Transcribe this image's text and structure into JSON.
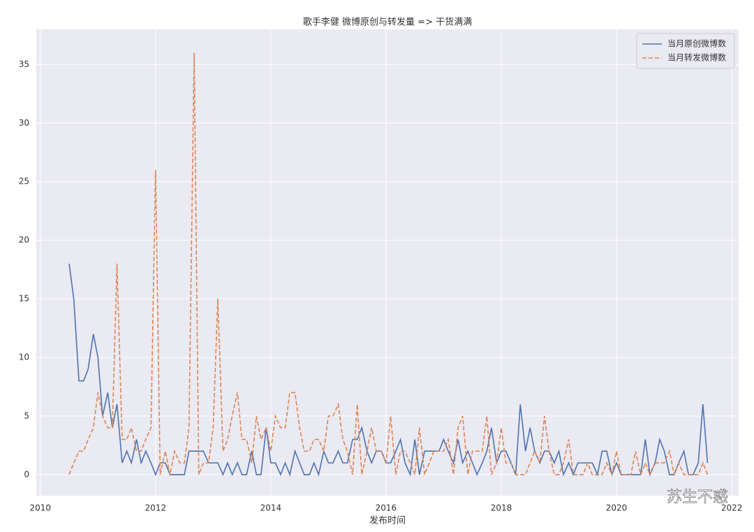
{
  "chart_data": {
    "type": "line",
    "title": "歌手李健 微博原创与转发量 => 干货满满",
    "xlabel": "发布时间",
    "watermark": "苏生不惑",
    "x": [
      2010.5,
      2010.58,
      2010.67,
      2010.75,
      2010.83,
      2010.92,
      2011,
      2011.08,
      2011.17,
      2011.25,
      2011.33,
      2011.42,
      2011.5,
      2011.58,
      2011.67,
      2011.75,
      2011.83,
      2011.92,
      2012,
      2012.08,
      2012.17,
      2012.25,
      2012.33,
      2012.42,
      2012.5,
      2012.58,
      2012.67,
      2012.75,
      2012.83,
      2012.92,
      2013,
      2013.08,
      2013.17,
      2013.25,
      2013.33,
      2013.42,
      2013.5,
      2013.58,
      2013.67,
      2013.75,
      2013.83,
      2013.92,
      2014,
      2014.08,
      2014.17,
      2014.25,
      2014.33,
      2014.42,
      2014.5,
      2014.58,
      2014.67,
      2014.75,
      2014.83,
      2014.92,
      2015,
      2015.08,
      2015.17,
      2015.25,
      2015.33,
      2015.42,
      2015.5,
      2015.58,
      2015.67,
      2015.75,
      2015.83,
      2015.92,
      2016,
      2016.08,
      2016.17,
      2016.25,
      2016.33,
      2016.42,
      2016.5,
      2016.58,
      2016.67,
      2016.75,
      2016.83,
      2016.92,
      2017,
      2017.08,
      2017.17,
      2017.25,
      2017.33,
      2017.42,
      2017.5,
      2017.58,
      2017.67,
      2017.75,
      2017.83,
      2017.92,
      2018,
      2018.08,
      2018.17,
      2018.25,
      2018.33,
      2018.42,
      2018.5,
      2018.58,
      2018.67,
      2018.75,
      2018.83,
      2018.92,
      2019,
      2019.08,
      2019.17,
      2019.25,
      2019.33,
      2019.42,
      2019.5,
      2019.58,
      2019.67,
      2019.75,
      2019.83,
      2019.92,
      2020,
      2020.08,
      2020.17,
      2020.25,
      2020.33,
      2020.42,
      2020.5,
      2020.58,
      2020.67,
      2020.75,
      2020.83,
      2020.92,
      2021,
      2021.08,
      2021.17,
      2021.25,
      2021.33,
      2021.42,
      2021.5,
      2021.58
    ],
    "series": [
      {
        "name": "当月原创微博数",
        "color": "#4c72b0",
        "dash": false,
        "values": [
          18,
          15,
          8,
          8,
          9,
          12,
          10,
          5,
          7,
          4,
          6,
          1,
          2,
          1,
          3,
          1,
          2,
          1,
          0,
          1,
          1,
          0,
          0,
          0,
          0,
          2,
          2,
          2,
          2,
          1,
          1,
          1,
          0,
          1,
          0,
          1,
          0,
          0,
          2,
          0,
          0,
          4,
          1,
          1,
          0,
          1,
          0,
          2,
          1,
          0,
          0,
          1,
          0,
          2,
          1,
          1,
          2,
          1,
          1,
          3,
          3,
          4,
          2,
          1,
          2,
          2,
          1,
          1,
          2,
          3,
          1,
          0,
          3,
          0,
          2,
          2,
          2,
          2,
          3,
          2,
          1,
          3,
          1,
          2,
          1,
          0,
          1,
          2,
          4,
          1,
          2,
          2,
          1,
          0,
          6,
          2,
          4,
          2,
          1,
          2,
          2,
          1,
          2,
          0,
          1,
          0,
          1,
          1,
          1,
          1,
          0,
          2,
          2,
          0,
          1,
          0,
          0,
          0,
          0,
          0,
          3,
          0,
          1,
          3,
          2,
          0,
          0,
          1,
          2,
          0,
          0,
          1,
          6,
          1
        ]
      },
      {
        "name": "当月转发微博数",
        "color": "#dd8452",
        "dash": true,
        "values": [
          0,
          1,
          2,
          2,
          3,
          4,
          7,
          5,
          4,
          4,
          18,
          3,
          3,
          4,
          2,
          2,
          3,
          4,
          26,
          0,
          2,
          0,
          2,
          1,
          1,
          4,
          36,
          0,
          1,
          1,
          4,
          15,
          2,
          3,
          5,
          7,
          3,
          3,
          1,
          5,
          3,
          4,
          2,
          5,
          4,
          4,
          7,
          7,
          4,
          2,
          2,
          3,
          3,
          2,
          5,
          5,
          6,
          3,
          2,
          0,
          6,
          0,
          2,
          4,
          2,
          2,
          1,
          5,
          0,
          2,
          2,
          1,
          0,
          4,
          0,
          1,
          2,
          2,
          2,
          3,
          0,
          4,
          5,
          0,
          2,
          2,
          2,
          5,
          0,
          1,
          4,
          1,
          1,
          0,
          0,
          0,
          1,
          2,
          1,
          5,
          2,
          0,
          0,
          1,
          3,
          0,
          0,
          0,
          1,
          0,
          0,
          0,
          1,
          0,
          2,
          0,
          0,
          0,
          2,
          0,
          1,
          0,
          1,
          1,
          1,
          2,
          0,
          1,
          0,
          0,
          0,
          0,
          1,
          0
        ]
      }
    ],
    "xlim": [
      2009.93,
      2022.12
    ],
    "ylim": [
      -1.8,
      38
    ],
    "xticks": [
      2010,
      2012,
      2014,
      2016,
      2018,
      2020,
      2022
    ],
    "yticks": [
      0,
      5,
      10,
      15,
      20,
      25,
      30,
      35
    ],
    "grid": true,
    "legend": "upper right"
  }
}
